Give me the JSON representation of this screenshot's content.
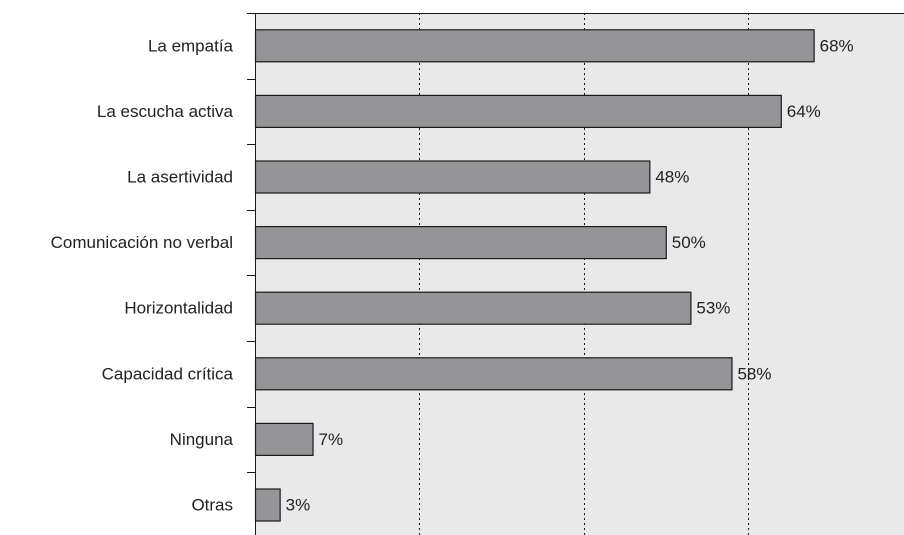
{
  "chart_data": {
    "type": "bar",
    "orientation": "horizontal",
    "categories": [
      "La empatía",
      "La escucha activa",
      "La asertividad",
      "Comunicación no verbal",
      "Horizontalidad",
      "Capacidad crítica",
      "Ninguna",
      "Otras"
    ],
    "values": [
      68,
      64,
      48,
      50,
      53,
      58,
      7,
      3
    ],
    "value_labels": [
      "68%",
      "64%",
      "48%",
      "50%",
      "53%",
      "58%",
      "7%",
      "3%"
    ],
    "unit": "%",
    "xlim": [
      0,
      79
    ],
    "x_gridlines": [
      20,
      40,
      60
    ],
    "grid": true,
    "legend": "none",
    "colors": {
      "bar_fill": "#959598",
      "bar_stroke": "#1a1a1a",
      "plot_background": "#e9e9ea",
      "axis": "#1a1a1a",
      "grid": "#1a1a1a"
    }
  }
}
